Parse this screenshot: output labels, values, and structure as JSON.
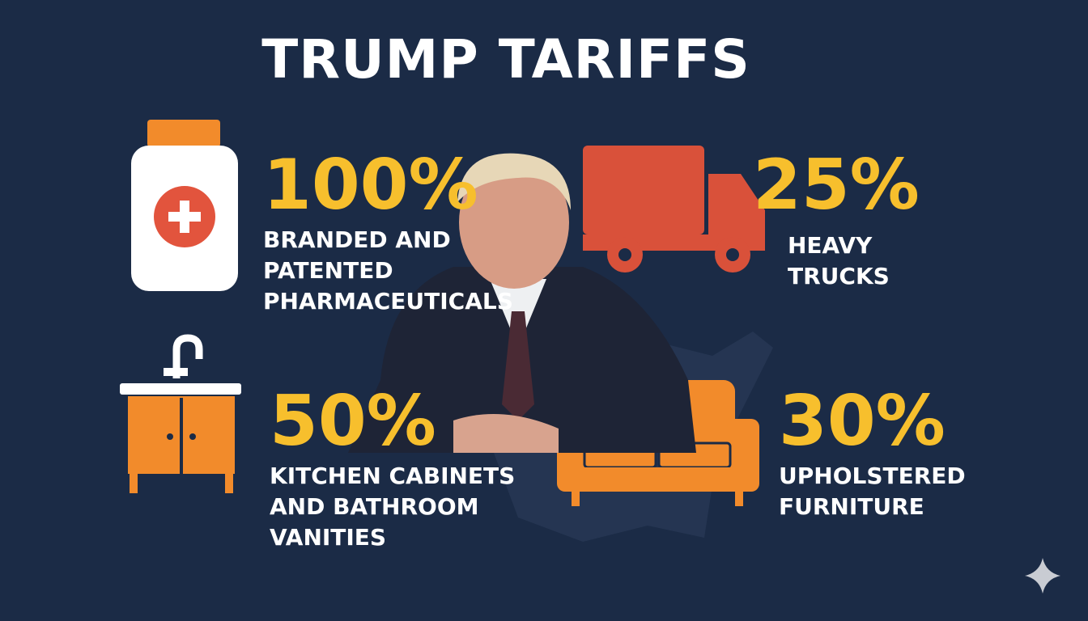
{
  "title": "TRUMP TARIFFS",
  "items": [
    {
      "rate": "100%",
      "label": [
        "BRANDED AND",
        "PATENTED",
        "PHARMACEUTICALS"
      ]
    },
    {
      "rate": "25%",
      "label": [
        "HEAVY",
        "TRUCKS"
      ]
    },
    {
      "rate": "50%",
      "label": [
        "KITCHEN CABINETS",
        "AND BATHROOM",
        "VANITIES"
      ]
    },
    {
      "rate": "30%",
      "label": [
        "UPHOLSTERED",
        "FURNITURE"
      ]
    }
  ]
}
